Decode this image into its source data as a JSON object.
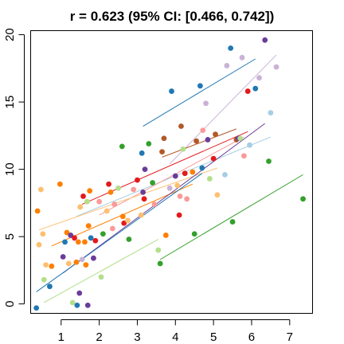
{
  "chart_data": {
    "type": "scatter",
    "title": "r = 0.623 (95% CI: [0.466, 0.742])",
    "xlabel": "",
    "ylabel": "",
    "xlim": [
      0.2,
      7.6
    ],
    "ylim": [
      -0.7,
      20.3
    ],
    "xticks": [
      1,
      2,
      3,
      4,
      5,
      6,
      7
    ],
    "yticks": [
      0,
      5,
      10,
      15,
      20
    ],
    "grid": false,
    "legend": "none",
    "points": [
      {
        "x": 0.35,
        "y": -0.3,
        "color": "#1f78b4"
      },
      {
        "x": 0.38,
        "y": 6.9,
        "color": "#ff7f00"
      },
      {
        "x": 0.42,
        "y": 4.4,
        "color": "#fdbf6f"
      },
      {
        "x": 0.47,
        "y": 8.5,
        "color": "#fdbf6f"
      },
      {
        "x": 0.52,
        "y": 5.2,
        "color": "#fdbf6f"
      },
      {
        "x": 0.55,
        "y": 1.8,
        "color": "#b2df8a"
      },
      {
        "x": 0.6,
        "y": 2.9,
        "color": "#fdbf6f"
      },
      {
        "x": 0.7,
        "y": 1.3,
        "color": "#1f78b4"
      },
      {
        "x": 0.75,
        "y": 2.8,
        "color": "#ff7f00"
      },
      {
        "x": 0.97,
        "y": 8.9,
        "color": "#ff7f00"
      },
      {
        "x": 1.05,
        "y": 3.5,
        "color": "#6a3d9a"
      },
      {
        "x": 1.1,
        "y": 4.6,
        "color": "#1f78b4"
      },
      {
        "x": 1.15,
        "y": 5.3,
        "color": "#ff7f00"
      },
      {
        "x": 1.2,
        "y": 3.0,
        "color": "#fdbf6f"
      },
      {
        "x": 1.25,
        "y": 5.1,
        "color": "#6a3d9a"
      },
      {
        "x": 1.3,
        "y": 0.1,
        "color": "#b2df8a"
      },
      {
        "x": 1.35,
        "y": 4.9,
        "color": "#e31a1c"
      },
      {
        "x": 1.4,
        "y": 3.1,
        "color": "#ff7f00"
      },
      {
        "x": 1.42,
        "y": -0.1,
        "color": "#1f78b4"
      },
      {
        "x": 1.45,
        "y": 4.6,
        "color": "#ff7f00"
      },
      {
        "x": 1.48,
        "y": 0.8,
        "color": "#6a3d9a"
      },
      {
        "x": 1.5,
        "y": 7.2,
        "color": "#fdbf6f"
      },
      {
        "x": 1.55,
        "y": 3.3,
        "color": "#cab2d6"
      },
      {
        "x": 1.58,
        "y": 8.0,
        "color": "#e31a1c"
      },
      {
        "x": 1.62,
        "y": 4.6,
        "color": "#ff7f00"
      },
      {
        "x": 1.65,
        "y": 2.9,
        "color": "#ff7f00"
      },
      {
        "x": 1.68,
        "y": 7.6,
        "color": "#b2df8a"
      },
      {
        "x": 1.7,
        "y": -0.1,
        "color": "#6a3d9a"
      },
      {
        "x": 1.72,
        "y": 5.8,
        "color": "#ff7f00"
      },
      {
        "x": 1.75,
        "y": 8.4,
        "color": "#ff7f00"
      },
      {
        "x": 1.78,
        "y": 4.9,
        "color": "#1f78b4"
      },
      {
        "x": 1.85,
        "y": 3.4,
        "color": "#6a3d9a"
      },
      {
        "x": 1.9,
        "y": 4.7,
        "color": "#e31a1c"
      },
      {
        "x": 2.0,
        "y": 7.6,
        "color": "#fb9a99"
      },
      {
        "x": 2.05,
        "y": 2.0,
        "color": "#b2df8a"
      },
      {
        "x": 2.1,
        "y": 5.2,
        "color": "#33a02c"
      },
      {
        "x": 2.2,
        "y": 6.9,
        "color": "#fdbf6f"
      },
      {
        "x": 2.25,
        "y": 8.9,
        "color": "#e31a1c"
      },
      {
        "x": 2.3,
        "y": 8.3,
        "color": "#ff7f00"
      },
      {
        "x": 2.35,
        "y": 5.6,
        "color": "#fb9a99"
      },
      {
        "x": 2.4,
        "y": 7.4,
        "color": "#fb9a99"
      },
      {
        "x": 2.5,
        "y": 8.6,
        "color": "#b2df8a"
      },
      {
        "x": 2.6,
        "y": 11.7,
        "color": "#33a02c"
      },
      {
        "x": 2.62,
        "y": 6.5,
        "color": "#ff7f00"
      },
      {
        "x": 2.65,
        "y": 6.0,
        "color": "#e31a1c"
      },
      {
        "x": 2.75,
        "y": 6.2,
        "color": "#fdbf6f"
      },
      {
        "x": 2.78,
        "y": 4.8,
        "color": "#33a02c"
      },
      {
        "x": 2.9,
        "y": 8.5,
        "color": "#fb9a99"
      },
      {
        "x": 3.0,
        "y": 9.2,
        "color": "#e31a1c"
      },
      {
        "x": 3.1,
        "y": 6.6,
        "color": "#fdbf6f"
      },
      {
        "x": 3.12,
        "y": 11.2,
        "color": "#1f78b4"
      },
      {
        "x": 3.15,
        "y": 8.3,
        "color": "#6a3d9a"
      },
      {
        "x": 3.18,
        "y": 7.8,
        "color": "#e31a1c"
      },
      {
        "x": 3.2,
        "y": 10.0,
        "color": "#6a3d9a"
      },
      {
        "x": 3.3,
        "y": 11.9,
        "color": "#33a02c"
      },
      {
        "x": 3.4,
        "y": 9.0,
        "color": "#33a02c"
      },
      {
        "x": 3.45,
        "y": 7.4,
        "color": "#fb9a99"
      },
      {
        "x": 3.55,
        "y": 4.0,
        "color": "#b2df8a"
      },
      {
        "x": 3.6,
        "y": 3.0,
        "color": "#33a02c"
      },
      {
        "x": 3.65,
        "y": 11.3,
        "color": "#b15928"
      },
      {
        "x": 3.7,
        "y": 12.3,
        "color": "#b15928"
      },
      {
        "x": 3.75,
        "y": 5.1,
        "color": "#ff7f00"
      },
      {
        "x": 3.85,
        "y": 8.6,
        "color": "#cab2d6"
      },
      {
        "x": 3.9,
        "y": 15.8,
        "color": "#1f78b4"
      },
      {
        "x": 4.0,
        "y": 9.5,
        "color": "#6a3d9a"
      },
      {
        "x": 4.05,
        "y": 8.8,
        "color": "#fdbf6f"
      },
      {
        "x": 4.1,
        "y": 6.6,
        "color": "#e31a1c"
      },
      {
        "x": 4.12,
        "y": 8.0,
        "color": "#fb9a99"
      },
      {
        "x": 4.15,
        "y": 13.2,
        "color": "#b15928"
      },
      {
        "x": 4.2,
        "y": 11.5,
        "color": "#b2df8a"
      },
      {
        "x": 4.25,
        "y": 9.7,
        "color": "#e31a1c"
      },
      {
        "x": 4.3,
        "y": 7.8,
        "color": "#fb9a99"
      },
      {
        "x": 4.45,
        "y": 9.8,
        "color": "#ff7f00"
      },
      {
        "x": 4.5,
        "y": 5.2,
        "color": "#33a02c"
      },
      {
        "x": 4.55,
        "y": 12.1,
        "color": "#b15928"
      },
      {
        "x": 4.65,
        "y": 16.2,
        "color": "#1f78b4"
      },
      {
        "x": 4.7,
        "y": 10.1,
        "color": "#1f78b4"
      },
      {
        "x": 4.72,
        "y": 12.9,
        "color": "#fb9a99"
      },
      {
        "x": 4.8,
        "y": 14.9,
        "color": "#cab2d6"
      },
      {
        "x": 4.85,
        "y": 12.2,
        "color": "#6a3d9a"
      },
      {
        "x": 4.9,
        "y": 9.3,
        "color": "#b2df8a"
      },
      {
        "x": 5.0,
        "y": 10.8,
        "color": "#e31a1c"
      },
      {
        "x": 5.05,
        "y": 12.6,
        "color": "#b15928"
      },
      {
        "x": 5.1,
        "y": 8.1,
        "color": "#fdbf6f"
      },
      {
        "x": 5.3,
        "y": 9.6,
        "color": "#a6cee3"
      },
      {
        "x": 5.35,
        "y": 17.7,
        "color": "#cab2d6"
      },
      {
        "x": 5.45,
        "y": 19.0,
        "color": "#1f78b4"
      },
      {
        "x": 5.5,
        "y": 6.1,
        "color": "#33a02c"
      },
      {
        "x": 5.6,
        "y": 12.2,
        "color": "#b15928"
      },
      {
        "x": 5.65,
        "y": 12.3,
        "color": "#6a3d9a"
      },
      {
        "x": 5.7,
        "y": 12.3,
        "color": "#b2df8a"
      },
      {
        "x": 5.75,
        "y": 18.3,
        "color": "#cab2d6"
      },
      {
        "x": 5.8,
        "y": 11.0,
        "color": "#fb9a99"
      },
      {
        "x": 5.9,
        "y": 15.8,
        "color": "#e31a1c"
      },
      {
        "x": 5.95,
        "y": 11.8,
        "color": "#a6cee3"
      },
      {
        "x": 6.1,
        "y": 16.0,
        "color": "#1f78b4"
      },
      {
        "x": 6.2,
        "y": 16.8,
        "color": "#cab2d6"
      },
      {
        "x": 6.35,
        "y": 19.6,
        "color": "#6a3d9a"
      },
      {
        "x": 6.45,
        "y": 10.6,
        "color": "#33a02c"
      },
      {
        "x": 6.5,
        "y": 14.2,
        "color": "#a6cee3"
      },
      {
        "x": 6.65,
        "y": 17.6,
        "color": "#cab2d6"
      },
      {
        "x": 7.35,
        "y": 7.8,
        "color": "#33a02c"
      }
    ],
    "lines": [
      {
        "color": "#a6cee3",
        "x1": 1.4,
        "y1": 6.5,
        "x2": 6.5,
        "y2": 12.4
      },
      {
        "color": "#1f78b4",
        "x1": 3.15,
        "y1": 13.2,
        "x2": 6.1,
        "y2": 18.2
      },
      {
        "color": "#b2df8a",
        "x1": 0.55,
        "y1": 0.1,
        "x2": 3.55,
        "y2": 4.8
      },
      {
        "color": "#33a02c",
        "x1": 3.6,
        "y1": 3.3,
        "x2": 7.35,
        "y2": 9.6
      },
      {
        "color": "#fb9a99",
        "x1": 2.0,
        "y1": 6.6,
        "x2": 5.8,
        "y2": 12.4
      },
      {
        "color": "#e31a1c",
        "x1": 1.55,
        "y1": 7.4,
        "x2": 5.9,
        "y2": 12.8
      },
      {
        "color": "#fdbf6f",
        "x1": 0.42,
        "y1": 5.5,
        "x2": 5.1,
        "y2": 10.1
      },
      {
        "color": "#ff7f00",
        "x1": 0.75,
        "y1": 4.3,
        "x2": 4.45,
        "y2": 8.9
      },
      {
        "color": "#cab2d6",
        "x1": 3.85,
        "y1": 10.4,
        "x2": 6.65,
        "y2": 18.5
      },
      {
        "color": "#6a3d9a",
        "x1": 1.05,
        "y1": 2.3,
        "x2": 6.35,
        "y2": 13.4
      },
      {
        "color": "#b15928",
        "x1": 3.65,
        "y1": 10.9,
        "x2": 5.6,
        "y2": 13.0
      },
      {
        "color": "#1f78b4",
        "x1": 0.35,
        "y1": 0.9,
        "x2": 4.7,
        "y2": 9.7
      }
    ]
  }
}
